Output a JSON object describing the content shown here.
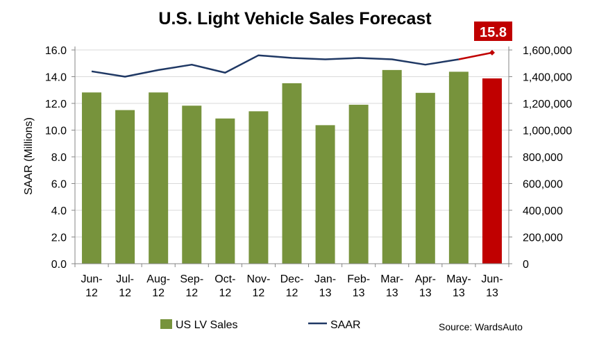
{
  "chart_data": {
    "type": "bar",
    "title": "U.S. Light Vehicle Sales Forecast",
    "ylabel": "SAAR (Millions)",
    "ylim": [
      0,
      16
    ],
    "y_ticks": [
      "0.0",
      "2.0",
      "4.0",
      "6.0",
      "8.0",
      "10.0",
      "12.0",
      "14.0",
      "16.0"
    ],
    "y2lim": [
      0,
      1600000
    ],
    "y2_ticks": [
      "0",
      "200,000",
      "400,000",
      "600,000",
      "800,000",
      "1,000,000",
      "1,200,000",
      "1,400,000",
      "1,600,000"
    ],
    "categories": [
      [
        "Jun-",
        "12"
      ],
      [
        "Jul-",
        "12"
      ],
      [
        "Aug-",
        "12"
      ],
      [
        "Sep-",
        "12"
      ],
      [
        "Oct-",
        "12"
      ],
      [
        "Nov-",
        "12"
      ],
      [
        "Dec-",
        "12"
      ],
      [
        "Jan-",
        "13"
      ],
      [
        "Feb-",
        "13"
      ],
      [
        "Mar-",
        "13"
      ],
      [
        "Apr-",
        "13"
      ],
      [
        "May-",
        "13"
      ],
      [
        "Jun-",
        "13"
      ]
    ],
    "series": [
      {
        "name": "US LV Sales",
        "type": "bar",
        "axis": "right",
        "color": "#77933c",
        "forecast_color": "#c00000",
        "values": [
          1282000,
          1150000,
          1282000,
          1183000,
          1087000,
          1141000,
          1351000,
          1037000,
          1190000,
          1450000,
          1279000,
          1437000,
          1387000
        ]
      },
      {
        "name": "SAAR",
        "type": "line",
        "axis": "left",
        "color": "#1f3864",
        "forecast_color": "#c00000",
        "values": [
          14.4,
          14.0,
          14.5,
          14.9,
          14.3,
          15.6,
          15.4,
          15.3,
          15.4,
          15.3,
          14.9,
          15.3,
          15.8
        ]
      }
    ],
    "forecast_label": "15.8",
    "legend": {
      "position": "bottom"
    },
    "source": "Source: WardsAuto",
    "colors": {
      "callout_bg": "#c00000",
      "axis": "#868686"
    }
  }
}
